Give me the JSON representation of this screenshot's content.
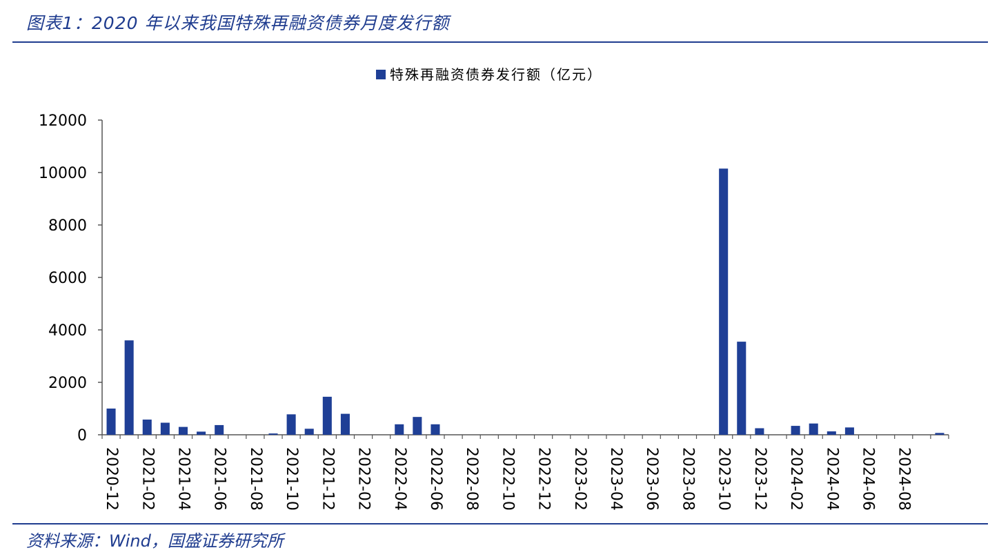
{
  "header": {
    "title": "图表1：2020 年以来我国特殊再融资债券月度发行额"
  },
  "footer": {
    "source": "资料来源：Wind，国盛证券研究所"
  },
  "colors": {
    "bar": "#1f3f96",
    "accent": "#1f3c8f",
    "axis": "#555555"
  },
  "chart_data": {
    "type": "bar",
    "series": [
      {
        "name": "特殊再融资债券发行额（亿元）",
        "values": [
          1000,
          3600,
          580,
          460,
          300,
          120,
          370,
          0,
          0,
          50,
          780,
          230,
          1450,
          800,
          0,
          0,
          400,
          680,
          400,
          0,
          0,
          0,
          0,
          0,
          0,
          0,
          0,
          0,
          0,
          0,
          0,
          0,
          0,
          0,
          10150,
          3550,
          250,
          0,
          340,
          430,
          130,
          280,
          0,
          0,
          0,
          0,
          70
        ]
      }
    ],
    "categories": [
      "2020-12",
      "2021-01",
      "2021-02",
      "2021-03",
      "2021-04",
      "2021-05",
      "2021-06",
      "2021-07",
      "2021-08",
      "2021-09",
      "2021-10",
      "2021-11",
      "2021-12",
      "2022-01",
      "2022-02",
      "2022-03",
      "2022-04",
      "2022-05",
      "2022-06",
      "2022-07",
      "2022-08",
      "2022-09",
      "2022-10",
      "2022-11",
      "2022-12",
      "2023-01",
      "2023-02",
      "2023-03",
      "2023-04",
      "2023-05",
      "2023-06",
      "2023-07",
      "2023-08",
      "2023-09",
      "2023-10",
      "2023-11",
      "2023-12",
      "2024-01",
      "2024-02",
      "2024-03",
      "2024-04",
      "2024-05",
      "2024-06",
      "2024-07",
      "2024-08",
      "2024-09",
      "2024-10"
    ],
    "tick_labels": [
      "2020-12",
      "2021-02",
      "2021-04",
      "2021-06",
      "2021-08",
      "2021-10",
      "2021-12",
      "2022-02",
      "2022-04",
      "2022-06",
      "2022-08",
      "2022-10",
      "2022-12",
      "2023-02",
      "2023-04",
      "2023-06",
      "2023-08",
      "2023-10",
      "2023-12",
      "2024-02",
      "2024-04",
      "2024-06",
      "2024-08"
    ],
    "yticks": [
      0,
      2000,
      4000,
      6000,
      8000,
      10000,
      12000
    ],
    "ylim": [
      0,
      12000
    ],
    "legend_position": "top-center",
    "grid": false
  }
}
